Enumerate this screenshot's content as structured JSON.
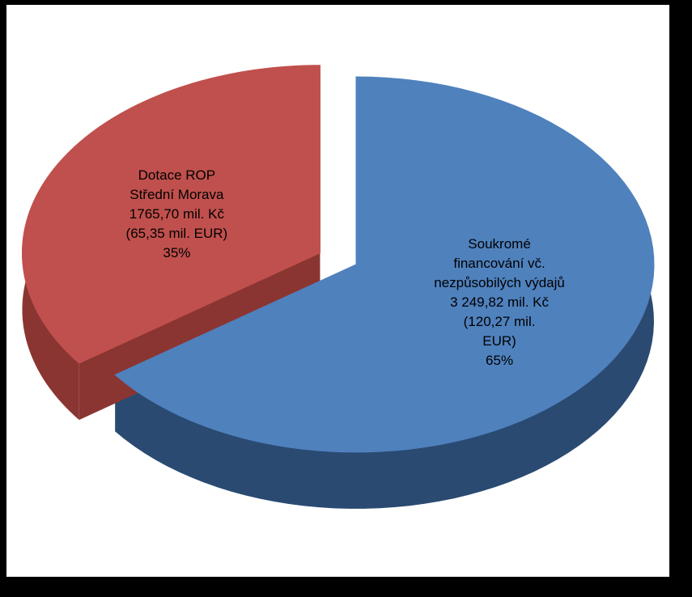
{
  "chart_data": {
    "type": "pie",
    "categories": [
      "Soukromé financování vč. nezpůsobilých výdajů",
      "Dotace ROP Střední Morava"
    ],
    "amounts": [
      "3 249,82 mil. Kč (120,27 mil. EUR)",
      "1765,70 mil. Kč (65,35 mil. EUR)"
    ],
    "values": [
      65,
      35
    ],
    "value_labels": [
      "65%",
      "35%"
    ],
    "colors": [
      "#4f81bd",
      "#c0504d"
    ],
    "side_colors": [
      "#2a4a72",
      "#8a3532"
    ],
    "exploded": [
      false,
      true
    ]
  }
}
